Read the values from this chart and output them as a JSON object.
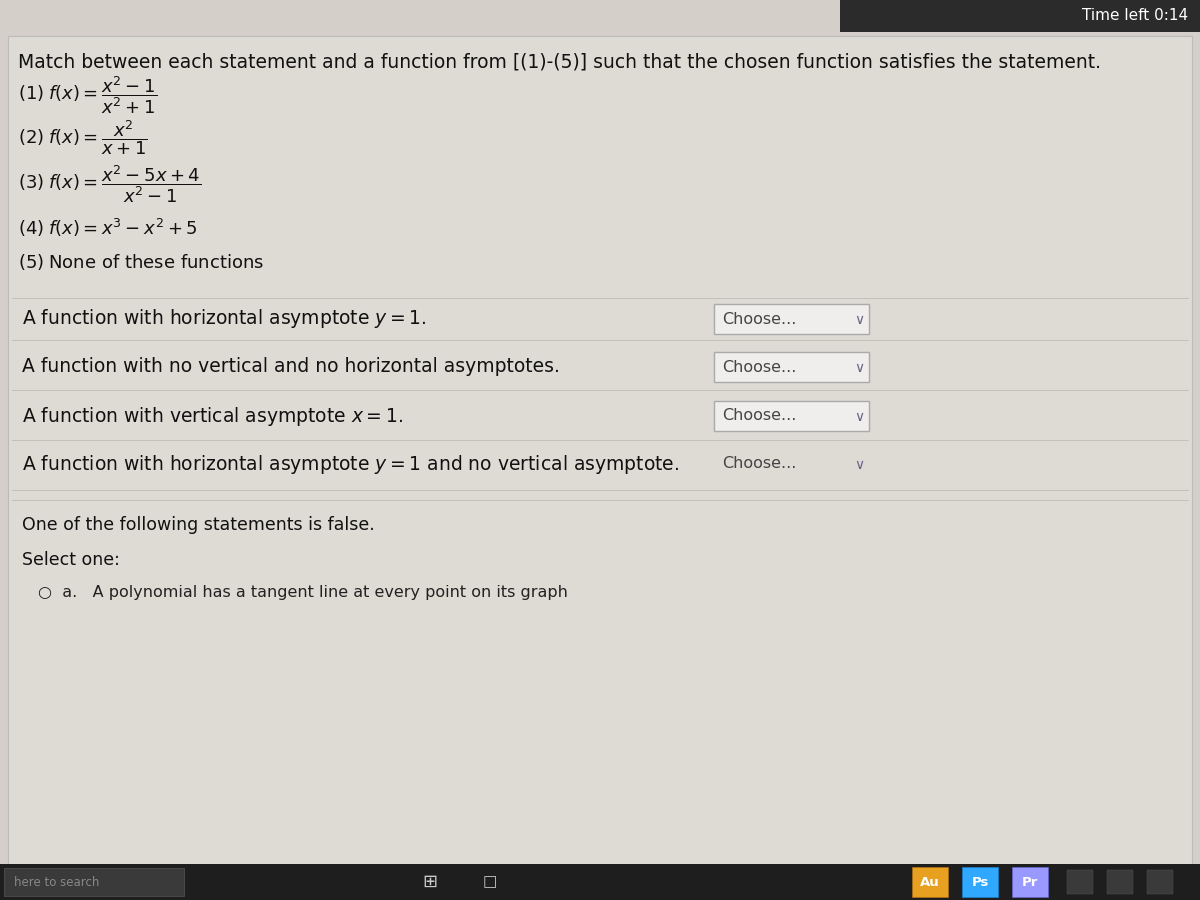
{
  "bg_color": "#d4cfc8",
  "content_bg": "#dedad4",
  "top_bar_color": "#2b2b2b",
  "top_bar_text": "Time left 0:14",
  "top_bar_text_color": "#ffffff",
  "title": "Match between each statement and a function from [(1)-(5)] such that the chosen function satisfies the statement.",
  "choose_text": "Choose...",
  "choose_box_color": "#f0eeec",
  "choose_box_border": "#aaaaaa",
  "bottom_text1": "One of the following statements is false.",
  "bottom_text2": "Select one:",
  "bottom_text3": "A polynomial has a tangent line at every point on its graph",
  "taskbar_bg": "#1e1e1e",
  "au_color": "#e8a020",
  "ps_color": "#31a8ff",
  "pr_color": "#9999ff",
  "statement_fontsize": 13.5,
  "function_fontsize": 13
}
